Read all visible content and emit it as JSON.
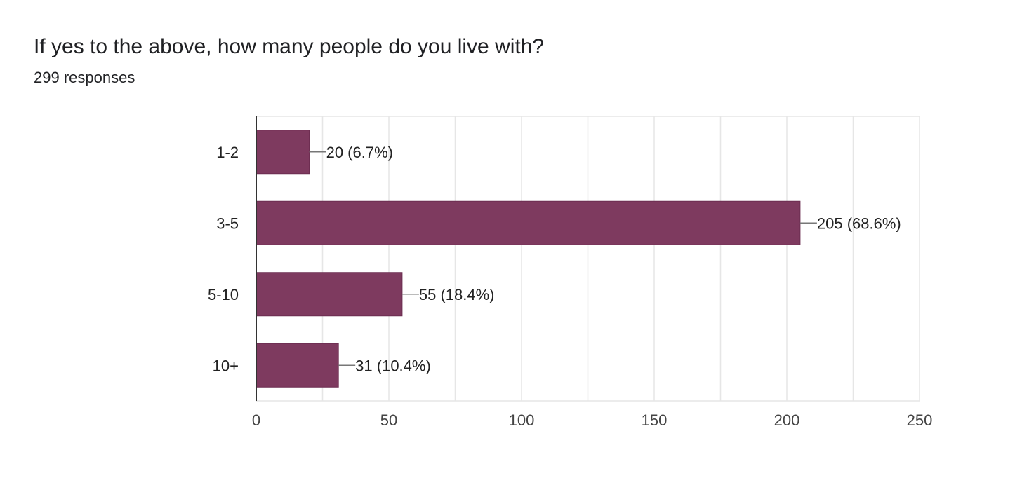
{
  "question": {
    "title": "If yes to the above, how many people do you live with?",
    "responses": "299 responses"
  },
  "colors": {
    "bar": "#7e3a5f",
    "bar_stroke": "#6c2d50",
    "grid": "#e6e6e6",
    "axis": "#333333",
    "leader": "#777777"
  },
  "chart_data": {
    "type": "bar",
    "orientation": "horizontal",
    "categories": [
      "1-2",
      "3-5",
      "5-10",
      "10+"
    ],
    "values": [
      20,
      205,
      55,
      31
    ],
    "data_labels": [
      "20 (6.7%)",
      "205 (68.6%)",
      "55 (18.4%)",
      "31 (10.4%)"
    ],
    "xlim": [
      0,
      250
    ],
    "x_ticks": [
      0,
      50,
      100,
      150,
      200,
      250
    ],
    "x_tick_labels": [
      "0",
      "50",
      "100",
      "150",
      "200",
      "250"
    ],
    "grid": true,
    "legend": "none"
  }
}
